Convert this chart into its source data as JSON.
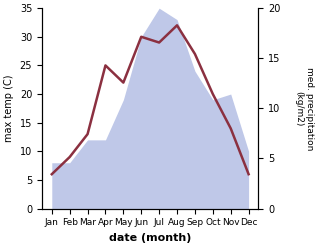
{
  "months": [
    "Jan",
    "Feb",
    "Mar",
    "Apr",
    "May",
    "Jun",
    "Jul",
    "Aug",
    "Sep",
    "Oct",
    "Nov",
    "Dec"
  ],
  "temperature": [
    6,
    9,
    13,
    25,
    22,
    30,
    29,
    32,
    27,
    20,
    14,
    6
  ],
  "precipitation_left_scale": [
    8,
    8,
    12,
    12,
    19,
    30,
    35,
    33,
    24,
    19,
    20,
    10
  ],
  "precip_fill_color": "#bfc8e8",
  "temp_color": "#8B3040",
  "background_color": "#ffffff",
  "xlabel": "date (month)",
  "ylabel_left": "max temp (C)",
  "ylabel_right": "med. precipitation\n(kg/m2)",
  "ylim_left": [
    0,
    35
  ],
  "ylim_right": [
    0,
    20
  ],
  "yticks_left": [
    0,
    5,
    10,
    15,
    20,
    25,
    30,
    35
  ],
  "yticks_right": [
    0,
    5,
    10,
    15,
    20
  ],
  "figsize": [
    3.18,
    2.47
  ],
  "dpi": 100
}
